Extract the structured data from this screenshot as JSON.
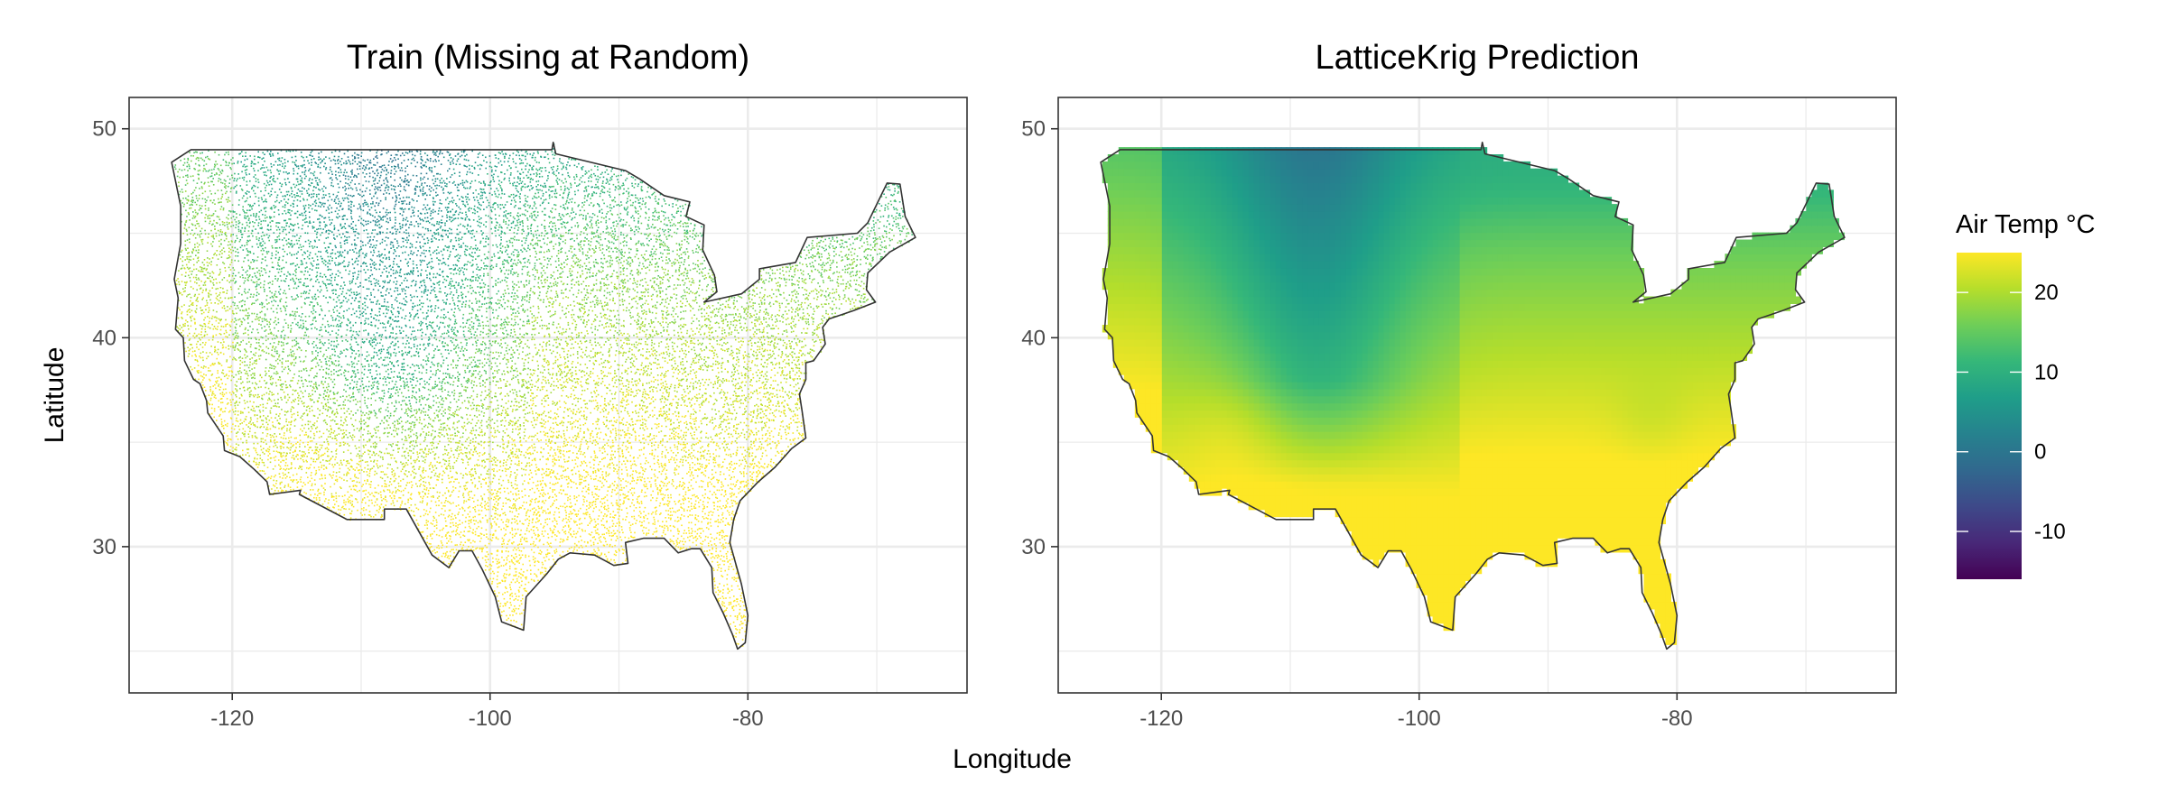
{
  "chart_data": [
    {
      "type": "heatmap",
      "title": "Train (Missing at Random)",
      "xlabel": "Longitude",
      "ylabel": "Latitude",
      "xlim": [
        -128,
        -63
      ],
      "ylim": [
        23,
        51.5
      ],
      "x_ticks": [
        -120,
        -100,
        -80
      ],
      "y_ticks": [
        30,
        40,
        50
      ],
      "grid": true,
      "rendering": "sparse scattered points (training observations missing at random)"
    },
    {
      "type": "heatmap",
      "title": "LatticeKrig Prediction",
      "xlabel": "Longitude",
      "ylabel": "",
      "xlim": [
        -128,
        -63
      ],
      "ylim": [
        23,
        51.5
      ],
      "x_ticks": [
        -120,
        -100,
        -80
      ],
      "y_ticks": [
        30,
        40,
        50
      ],
      "grid": true,
      "rendering": "continuous predicted surface"
    }
  ],
  "shared_xlabel": "Longitude",
  "shared_ylabel": "Latitude",
  "x_tick_labels": [
    "-120",
    "-100",
    "-80"
  ],
  "y_tick_labels": [
    "30",
    "40",
    "50"
  ],
  "legend": {
    "title": "Air Temp °C",
    "placement": "right",
    "range": [
      -16,
      25
    ],
    "ticks": [
      20,
      10,
      0,
      -10
    ],
    "tick_labels": [
      "20",
      "10",
      "0",
      "-10"
    ],
    "colormap": "viridis",
    "colors": [
      "#440154",
      "#482878",
      "#3e4989",
      "#31688e",
      "#26828e",
      "#1f9e89",
      "#35b779",
      "#6ece58",
      "#b5de2b",
      "#fde725"
    ]
  },
  "panel_titles": [
    "Train (Missing at Random)",
    "LatticeKrig Prediction"
  ],
  "border_color": "#333333",
  "grid_color": "#ebebeb"
}
